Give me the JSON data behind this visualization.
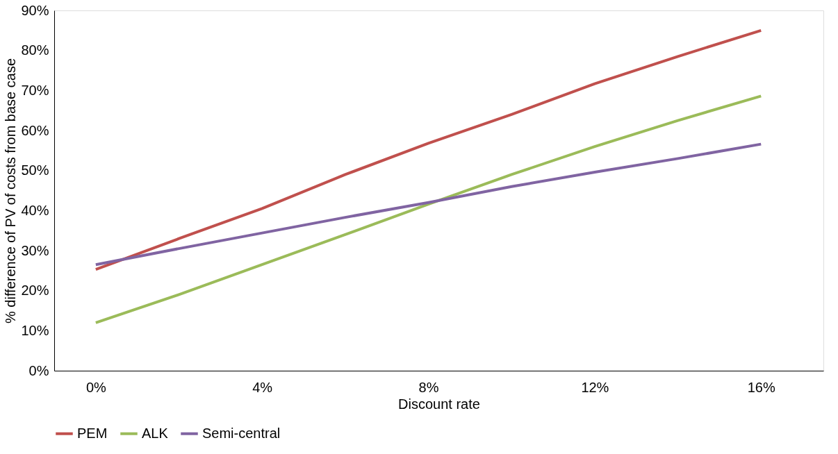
{
  "chart_data": {
    "type": "line",
    "xlabel": "Discount rate",
    "ylabel": "% difference of PV of costs from base case",
    "x": [
      0,
      2,
      4,
      6,
      8,
      10,
      12,
      14,
      16
    ],
    "series": [
      {
        "name": "PEM",
        "color": "#c0504d",
        "values": [
          25.3,
          33,
          40.5,
          49,
          56.8,
          64,
          71.7,
          78.5,
          85
        ]
      },
      {
        "name": "ALK",
        "color": "#9bbb59",
        "values": [
          12,
          19,
          26.5,
          34,
          41.6,
          49,
          56,
          62.5,
          68.6
        ]
      },
      {
        "name": "Semi-central",
        "color": "#8064a2",
        "values": [
          26.5,
          30.5,
          34.4,
          38.3,
          42,
          46,
          49.6,
          53,
          56.6
        ]
      }
    ],
    "xlim": [
      -1,
      17.5
    ],
    "xticks": [
      {
        "value": 0,
        "label": "0%"
      },
      {
        "value": 4,
        "label": "4%"
      },
      {
        "value": 8,
        "label": "8%"
      },
      {
        "value": 12,
        "label": "12%"
      },
      {
        "value": 16,
        "label": "16%"
      }
    ],
    "ylim": [
      0,
      90
    ],
    "yticks": [
      {
        "value": 0,
        "label": "0%"
      },
      {
        "value": 10,
        "label": "10%"
      },
      {
        "value": 20,
        "label": "20%"
      },
      {
        "value": 30,
        "label": "30%"
      },
      {
        "value": 40,
        "label": "40%"
      },
      {
        "value": 50,
        "label": "50%"
      },
      {
        "value": 60,
        "label": "60%"
      },
      {
        "value": 70,
        "label": "70%"
      },
      {
        "value": 80,
        "label": "80%"
      },
      {
        "value": 90,
        "label": "90%"
      }
    ],
    "grid": false,
    "legend": "bottom",
    "marker": "none",
    "line_style": "solid"
  }
}
